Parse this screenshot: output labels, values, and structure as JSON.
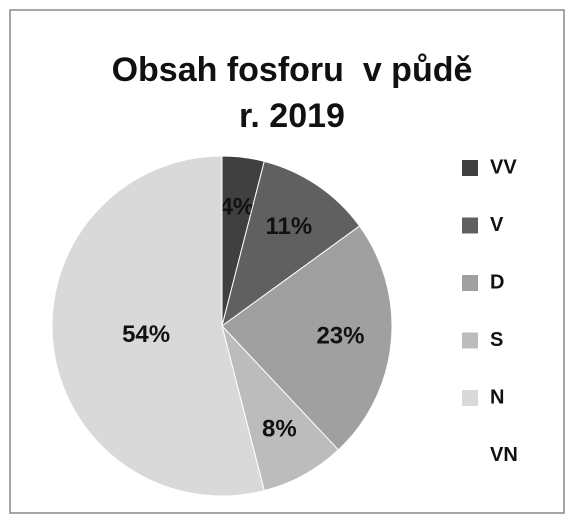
{
  "chart_data": {
    "type": "pie",
    "title": [
      "Obsah fosforu  v půdě",
      "r. 2019"
    ],
    "categories": [
      "VV",
      "V",
      "D",
      "S",
      "N",
      "VN"
    ],
    "values": [
      4,
      11,
      23,
      8,
      54,
      0
    ],
    "value_labels": [
      "4%",
      "11%",
      "23%",
      "8%",
      "54%",
      null
    ],
    "colors": [
      "#404040",
      "#606060",
      "#a0a0a0",
      "#bcbcbc",
      "#d9d9d9",
      "#ffffff"
    ],
    "legend": "right"
  }
}
